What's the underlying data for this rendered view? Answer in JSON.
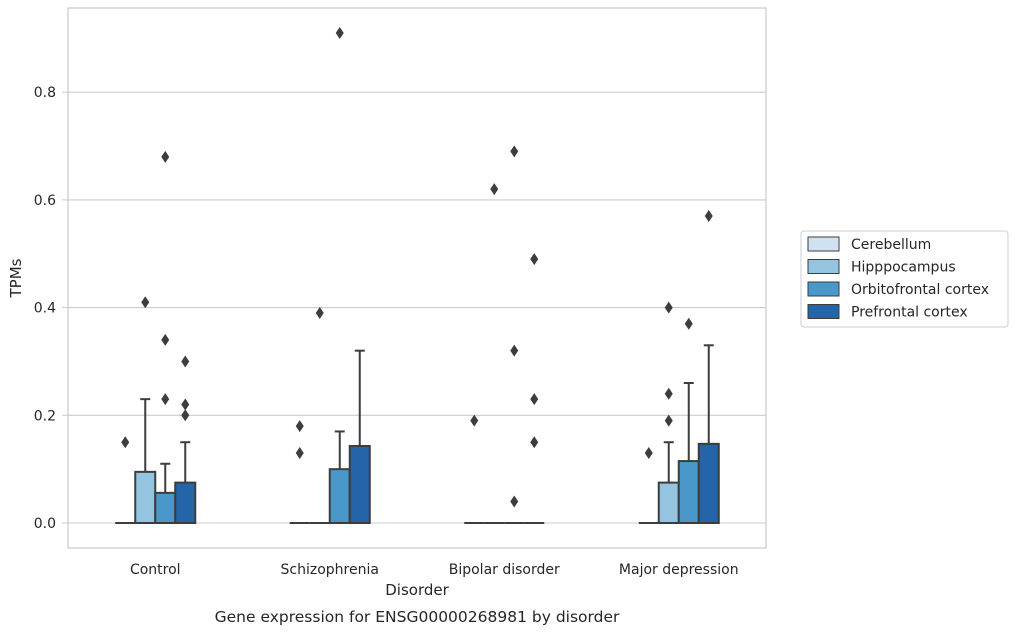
{
  "chart_data": {
    "type": "box",
    "title": "",
    "caption": "Gene expression for ENSG00000268981 by disorder",
    "xlabel": "Disorder",
    "ylabel": "TPMs",
    "ylim": [
      -0.045,
      0.955
    ],
    "yticks": [
      0.0,
      0.2,
      0.4,
      0.6,
      0.8
    ],
    "ytick_labels": [
      "0.0",
      "0.2",
      "0.4",
      "0.6",
      "0.8"
    ],
    "grid": "horizontal",
    "legend_position": "right",
    "categories": [
      "Control",
      "Schizophrenia",
      "Bipolar disorder",
      "Major depression"
    ],
    "series": [
      {
        "name": "Cerebellum",
        "color": "#d0e1f2",
        "boxes": [
          {
            "q1": 0,
            "median": 0,
            "q3": 0,
            "whisker_low": 0,
            "whisker_high": 0,
            "outliers": [
              0.15
            ]
          },
          {
            "q1": 0,
            "median": 0,
            "q3": 0,
            "whisker_low": 0,
            "whisker_high": 0,
            "outliers": [
              0.18,
              0.13
            ]
          },
          {
            "q1": 0,
            "median": 0,
            "q3": 0,
            "whisker_low": 0,
            "whisker_high": 0,
            "outliers": [
              0.19
            ]
          },
          {
            "q1": 0,
            "median": 0,
            "q3": 0,
            "whisker_low": 0,
            "whisker_high": 0,
            "outliers": [
              0.13
            ]
          }
        ]
      },
      {
        "name": "Hipppocampus",
        "color": "#94c4df",
        "boxes": [
          {
            "q1": 0,
            "median": 0,
            "q3": 0.095,
            "whisker_low": 0,
            "whisker_high": 0.23,
            "outliers": [
              0.41
            ]
          },
          {
            "q1": 0,
            "median": 0,
            "q3": 0,
            "whisker_low": 0,
            "whisker_high": 0,
            "outliers": [
              0.39
            ]
          },
          {
            "q1": 0,
            "median": 0,
            "q3": 0,
            "whisker_low": 0,
            "whisker_high": 0,
            "outliers": [
              0.62
            ]
          },
          {
            "q1": 0,
            "median": 0,
            "q3": 0.075,
            "whisker_low": 0,
            "whisker_high": 0.15,
            "outliers": [
              0.4,
              0.24,
              0.19
            ]
          }
        ]
      },
      {
        "name": "Orbitofrontal cortex",
        "color": "#4a98c9",
        "boxes": [
          {
            "q1": 0,
            "median": 0,
            "q3": 0.056,
            "whisker_low": 0,
            "whisker_high": 0.11,
            "outliers": [
              0.68,
              0.34,
              0.23
            ]
          },
          {
            "q1": 0,
            "median": 0,
            "q3": 0.1,
            "whisker_low": 0,
            "whisker_high": 0.17,
            "outliers": [
              0.91
            ]
          },
          {
            "q1": 0,
            "median": 0,
            "q3": 0,
            "whisker_low": 0,
            "whisker_high": 0,
            "outliers": [
              0.69,
              0.32,
              0.04
            ]
          },
          {
            "q1": 0,
            "median": 0,
            "q3": 0.115,
            "whisker_low": 0,
            "whisker_high": 0.26,
            "outliers": [
              0.37
            ]
          }
        ]
      },
      {
        "name": "Prefrontal cortex",
        "color": "#2464a8",
        "boxes": [
          {
            "q1": 0,
            "median": 0,
            "q3": 0.075,
            "whisker_low": 0,
            "whisker_high": 0.15,
            "outliers": [
              0.3,
              0.22,
              0.2
            ]
          },
          {
            "q1": 0,
            "median": 0,
            "q3": 0.143,
            "whisker_low": 0,
            "whisker_high": 0.32,
            "outliers": []
          },
          {
            "q1": 0,
            "median": 0,
            "q3": 0,
            "whisker_low": 0,
            "whisker_high": 0,
            "outliers": [
              0.49,
              0.23,
              0.15
            ]
          },
          {
            "q1": 0,
            "median": 0,
            "q3": 0.147,
            "whisker_low": 0,
            "whisker_high": 0.33,
            "outliers": [
              0.57
            ]
          }
        ]
      }
    ]
  }
}
